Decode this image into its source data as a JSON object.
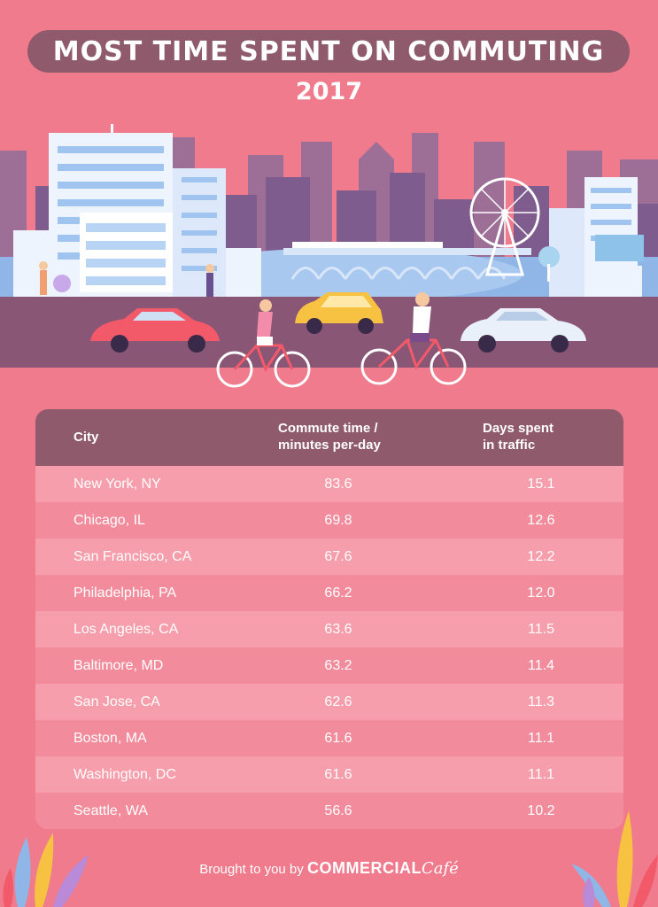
{
  "title": "MOST TIME SPENT ON COMMUTING",
  "subtitle": "2017",
  "chart_data": {
    "type": "table",
    "columns": [
      "City",
      "Commute time / minutes per-day",
      "Days spent in traffic"
    ],
    "header": {
      "city": "City",
      "commute_line1": "Commute time /",
      "commute_line2": "minutes per-day",
      "days_line1": "Days spent",
      "days_line2": "in traffic"
    },
    "rows": [
      {
        "city": "New York, NY",
        "commute": "83.6",
        "days": "15.1"
      },
      {
        "city": "Chicago, IL",
        "commute": "69.8",
        "days": "12.6"
      },
      {
        "city": "San Francisco, CA",
        "commute": "67.6",
        "days": "12.2"
      },
      {
        "city": "Philadelphia, PA",
        "commute": "66.2",
        "days": "12.0"
      },
      {
        "city": "Los Angeles, CA",
        "commute": "63.6",
        "days": "11.5"
      },
      {
        "city": "Baltimore, MD",
        "commute": "63.2",
        "days": "11.4"
      },
      {
        "city": "San Jose, CA",
        "commute": "62.6",
        "days": "11.3"
      },
      {
        "city": "Boston, MA",
        "commute": "61.6",
        "days": "11.1"
      },
      {
        "city": "Washington, DC",
        "commute": "61.6",
        "days": "11.1"
      },
      {
        "city": "Seattle, WA",
        "commute": "56.6",
        "days": "10.2"
      }
    ]
  },
  "footer": {
    "prefix": "Brought to you by ",
    "brand": "COMMERCIAL",
    "brand_script": "Café"
  },
  "colors": {
    "background": "#ef7b8d",
    "header": "#8e5a6c",
    "row_light": "#f69eab",
    "row_dark": "#f28c9c"
  }
}
